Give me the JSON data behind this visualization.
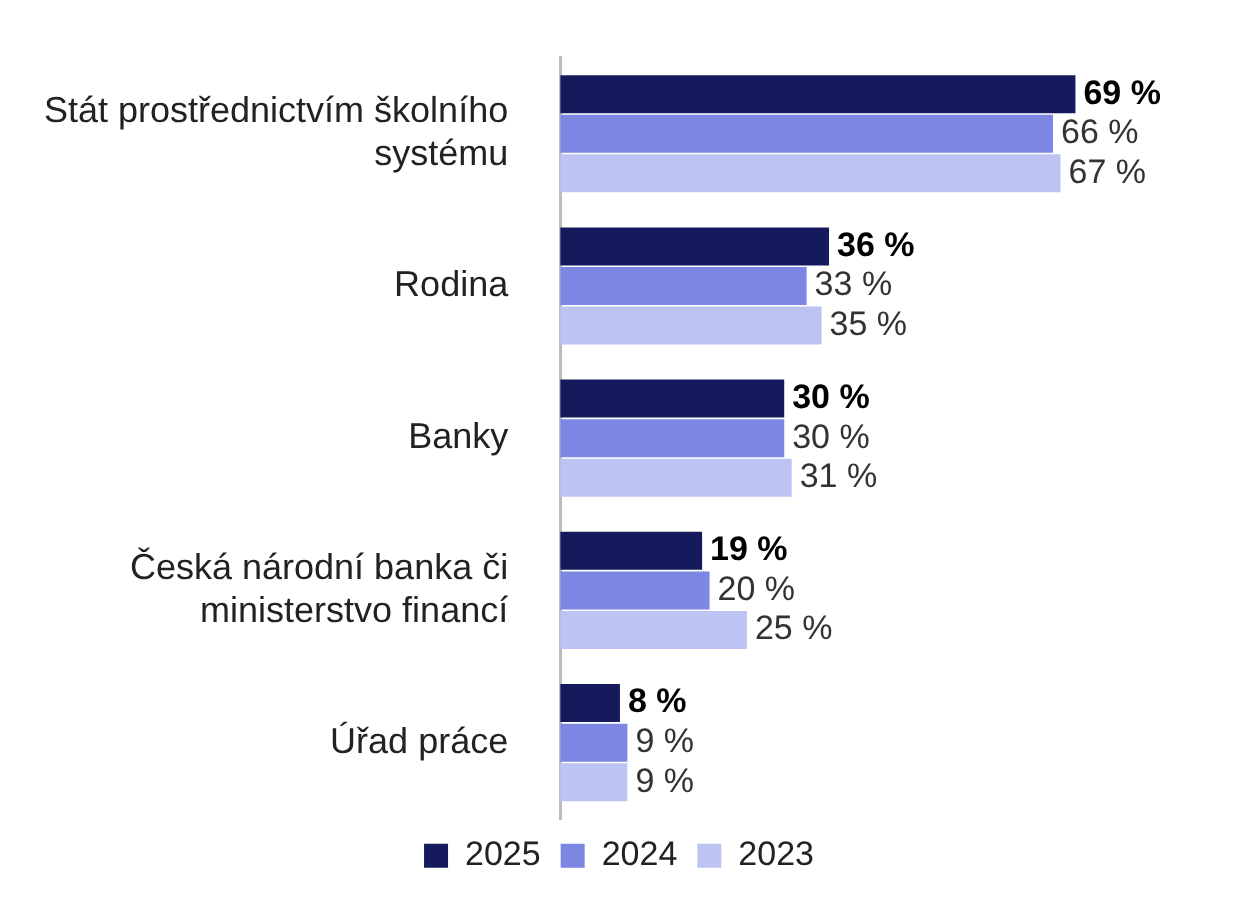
{
  "chart_data": {
    "type": "bar",
    "orientation": "horizontal",
    "categories": [
      "Stát prostřednictvím školního systému",
      "Rodina",
      "Banky",
      "Česká národní banka či ministerstvo financí",
      "Úřad práce"
    ],
    "series": [
      {
        "name": "2025",
        "color": "#141a5c",
        "values": [
          69,
          36,
          30,
          19,
          8
        ],
        "value_labels": [
          "69 %",
          "36 %",
          "30 %",
          "19 %",
          "8 %"
        ]
      },
      {
        "name": "2024",
        "color": "#7b87e3",
        "values": [
          66,
          33,
          30,
          20,
          9
        ],
        "value_labels": [
          "66 %",
          "33 %",
          "30 %",
          "20 %",
          "9 %"
        ]
      },
      {
        "name": "2023",
        "color": "#bdc3f3",
        "values": [
          67,
          35,
          31,
          25,
          9
        ],
        "value_labels": [
          "67 %",
          "35 %",
          "31 %",
          "25 %",
          "9 %"
        ]
      }
    ],
    "legend": "bottom"
  }
}
